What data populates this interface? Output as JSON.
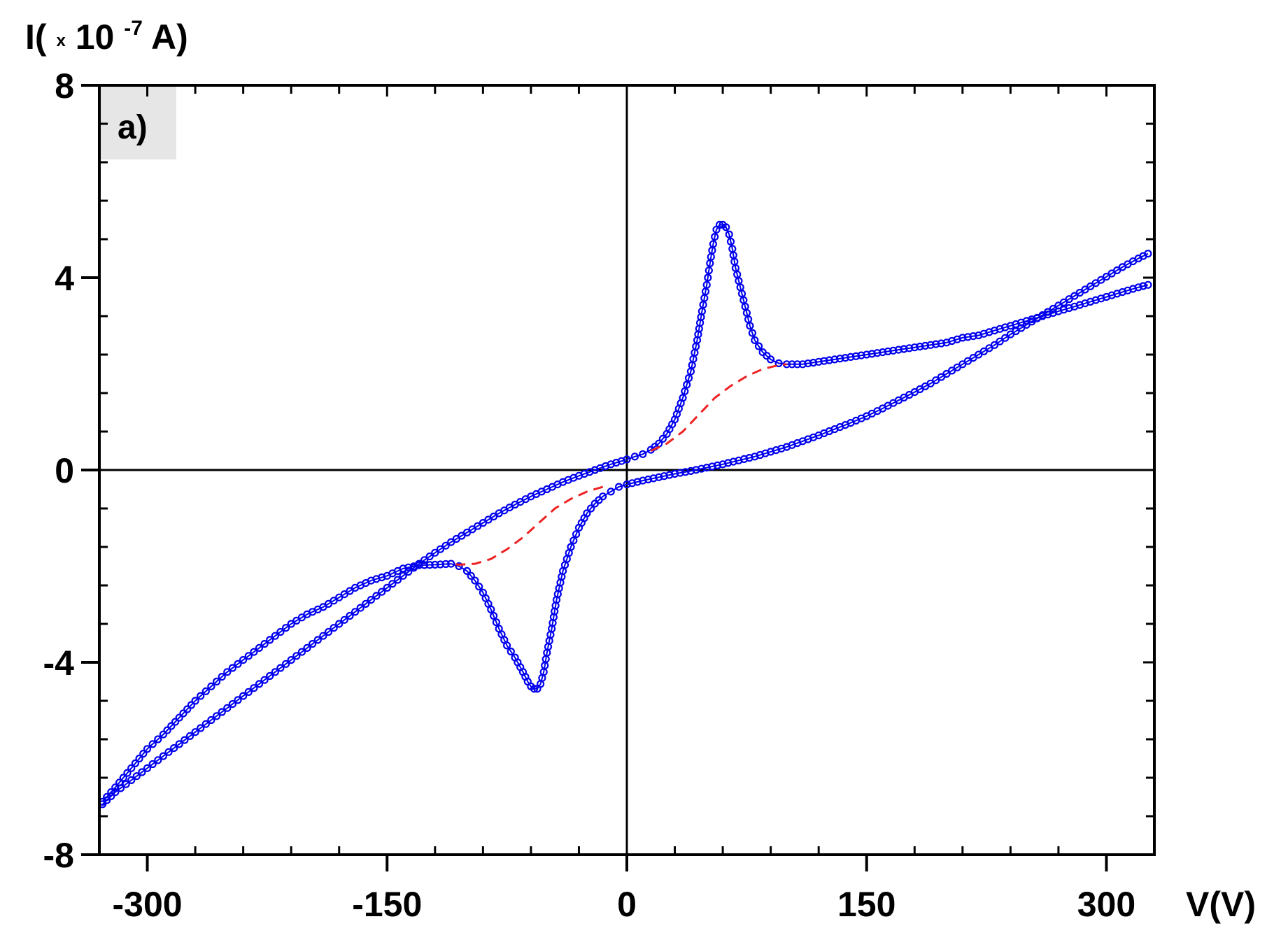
{
  "chart_data": {
    "type": "scatter",
    "panel_label": "a)",
    "xlabel": "V(V)",
    "ylabel_prefix": "I(",
    "ylabel_times": "x",
    "ylabel_base": "10",
    "ylabel_exp": "-7",
    "ylabel_suffix": "A)",
    "xlim": [
      -330,
      330
    ],
    "ylim": [
      -8,
      8
    ],
    "x_ticks": [
      -300,
      -150,
      0,
      150,
      300
    ],
    "x_tick_labels": [
      "-300",
      "-150",
      "0",
      "150",
      "300"
    ],
    "y_ticks": [
      -8,
      -4,
      0,
      4,
      8
    ],
    "y_tick_labels": [
      "-8",
      "-4",
      "0",
      "4",
      "8"
    ],
    "x_minor_step": 30,
    "y_minor_step": 0.8,
    "zero_lines": true,
    "colors": {
      "measured": "#0000ee",
      "baseline": "#ee2222",
      "axis": "#000000",
      "panel_bg": "#e6e6e6"
    },
    "series": [
      {
        "style": "markers-open-circle-with-line",
        "color": "#0000ee",
        "x": [
          -328,
          -320,
          -310,
          -300,
          -290,
          -280,
          -270,
          -260,
          -250,
          -240,
          -230,
          -220,
          -210,
          -200,
          -190,
          -180,
          -170,
          -160,
          -150,
          -140,
          -130,
          -120,
          -110,
          -105,
          -100,
          -95,
          -90,
          -85,
          -80,
          -75,
          -70,
          -65,
          -62,
          -60,
          -58,
          -56,
          -54,
          -52,
          -50,
          -47,
          -44,
          -40,
          -35,
          -30,
          -25,
          -20,
          -15,
          -10,
          -5,
          0,
          10,
          20,
          30,
          40,
          50,
          60,
          70,
          80,
          90,
          100,
          110,
          120,
          130,
          140,
          150,
          160,
          170,
          180,
          190,
          200,
          210,
          220,
          230,
          240,
          250,
          260,
          270,
          280,
          290,
          300,
          310,
          320,
          326
        ],
        "y": [
          -6.9,
          -6.6,
          -6.2,
          -5.8,
          -5.5,
          -5.15,
          -4.8,
          -4.5,
          -4.2,
          -3.95,
          -3.7,
          -3.45,
          -3.2,
          -3.0,
          -2.85,
          -2.65,
          -2.45,
          -2.3,
          -2.2,
          -2.05,
          -1.98,
          -1.97,
          -1.95,
          -2.0,
          -2.1,
          -2.3,
          -2.55,
          -2.9,
          -3.3,
          -3.65,
          -3.9,
          -4.2,
          -4.4,
          -4.5,
          -4.55,
          -4.55,
          -4.45,
          -4.2,
          -3.8,
          -3.3,
          -2.7,
          -2.1,
          -1.6,
          -1.2,
          -0.9,
          -0.7,
          -0.55,
          -0.45,
          -0.35,
          -0.3,
          -0.22,
          -0.15,
          -0.08,
          -0.02,
          0.05,
          0.12,
          0.2,
          0.28,
          0.38,
          0.48,
          0.6,
          0.72,
          0.85,
          0.98,
          1.12,
          1.28,
          1.45,
          1.62,
          1.8,
          2.0,
          2.2,
          2.4,
          2.6,
          2.82,
          3.02,
          3.22,
          3.42,
          3.62,
          3.82,
          4.02,
          4.22,
          4.4,
          4.5
        ]
      },
      {
        "style": "markers-open-circle-with-line",
        "color": "#0000ee",
        "x": [
          326,
          320,
          310,
          300,
          290,
          280,
          270,
          260,
          250,
          240,
          230,
          220,
          210,
          200,
          190,
          180,
          170,
          160,
          150,
          140,
          130,
          120,
          110,
          100,
          95,
          90,
          85,
          80,
          77,
          74,
          71,
          68,
          66,
          64,
          62,
          60,
          58,
          56,
          54,
          52,
          50,
          47,
          44,
          40,
          35,
          30,
          25,
          20,
          15,
          10,
          5,
          0,
          -10,
          -20,
          -30,
          -40,
          -50,
          -60,
          -70,
          -80,
          -90,
          -100,
          -110,
          -120,
          -130,
          -140,
          -150,
          -160,
          -170,
          -180,
          -190,
          -200,
          -210,
          -220,
          -230,
          -240,
          -250,
          -260,
          -270,
          -280,
          -290,
          -300,
          -310,
          -320,
          -328
        ],
        "y": [
          3.85,
          3.8,
          3.7,
          3.6,
          3.5,
          3.4,
          3.3,
          3.2,
          3.1,
          3.0,
          2.9,
          2.8,
          2.75,
          2.65,
          2.6,
          2.55,
          2.5,
          2.45,
          2.4,
          2.35,
          2.3,
          2.25,
          2.2,
          2.2,
          2.22,
          2.3,
          2.45,
          2.7,
          3.0,
          3.4,
          3.8,
          4.2,
          4.6,
          4.9,
          5.05,
          5.1,
          5.1,
          5.0,
          4.7,
          4.3,
          3.85,
          3.3,
          2.7,
          2.05,
          1.5,
          1.05,
          0.75,
          0.55,
          0.42,
          0.33,
          0.28,
          0.22,
          0.12,
          0.0,
          -0.12,
          -0.25,
          -0.4,
          -0.55,
          -0.72,
          -0.9,
          -1.1,
          -1.3,
          -1.5,
          -1.72,
          -1.95,
          -2.2,
          -2.45,
          -2.7,
          -2.95,
          -3.2,
          -3.45,
          -3.7,
          -3.95,
          -4.2,
          -4.45,
          -4.7,
          -4.95,
          -5.2,
          -5.45,
          -5.7,
          -5.95,
          -6.2,
          -6.45,
          -6.7,
          -6.95
        ]
      },
      {
        "style": "dashed-line",
        "color": "#ee2222",
        "x": [
          15,
          25,
          35,
          45,
          55,
          65,
          75,
          85,
          95,
          100
        ],
        "y": [
          0.4,
          0.55,
          0.8,
          1.15,
          1.5,
          1.75,
          1.95,
          2.1,
          2.18,
          2.2
        ]
      },
      {
        "style": "dashed-line",
        "color": "#ee2222",
        "x": [
          -15,
          -25,
          -35,
          -45,
          -55,
          -65,
          -75,
          -85,
          -95,
          -105,
          -110
        ],
        "y": [
          -0.35,
          -0.45,
          -0.6,
          -0.8,
          -1.1,
          -1.4,
          -1.65,
          -1.85,
          -1.95,
          -1.97,
          -1.95
        ]
      }
    ]
  }
}
